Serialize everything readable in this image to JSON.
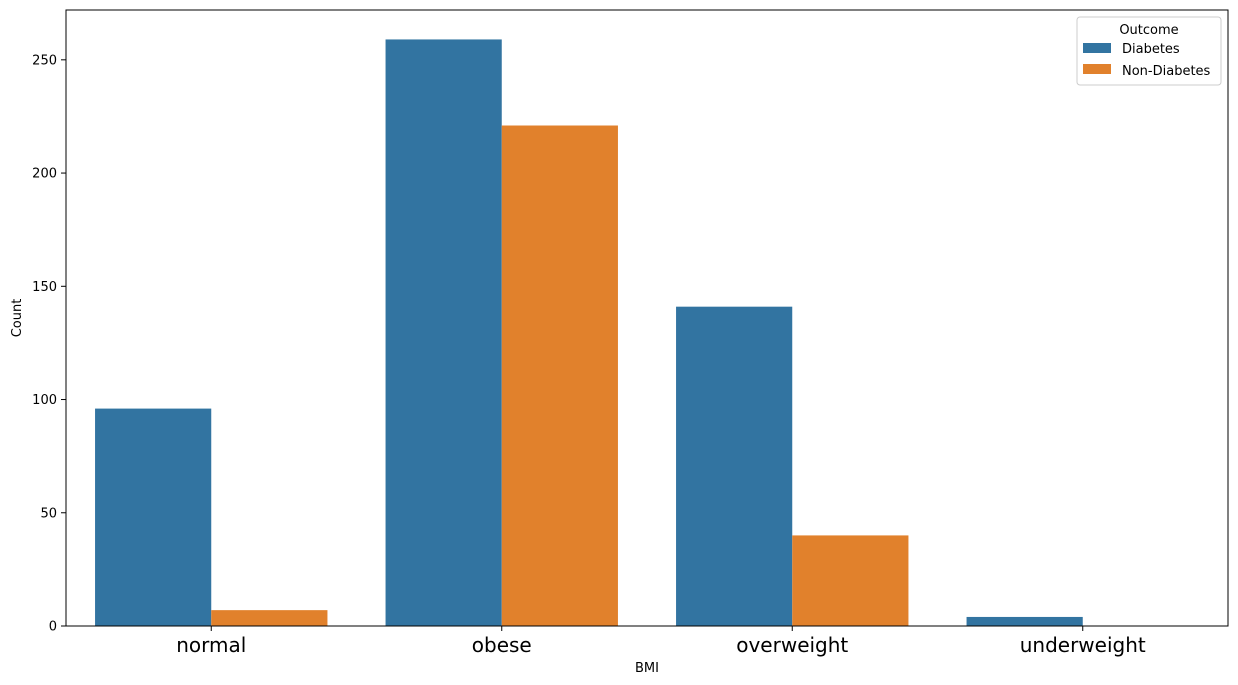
{
  "chart_data": {
    "type": "bar",
    "categories": [
      "normal",
      "obese",
      "overweight",
      "underweight"
    ],
    "series": [
      {
        "name": "Diabetes",
        "values": [
          96,
          259,
          141,
          4
        ],
        "color": "#3274a1"
      },
      {
        "name": "Non-Diabetes",
        "values": [
          7,
          221,
          40,
          0
        ],
        "color": "#e1812c"
      }
    ],
    "xlabel": "BMI",
    "ylabel": "Count",
    "ylim": [
      0,
      272
    ],
    "yticks": [
      0,
      50,
      100,
      150,
      200,
      250
    ],
    "legend": {
      "title": "Outcome",
      "placement": "top-right"
    },
    "grid": false
  }
}
